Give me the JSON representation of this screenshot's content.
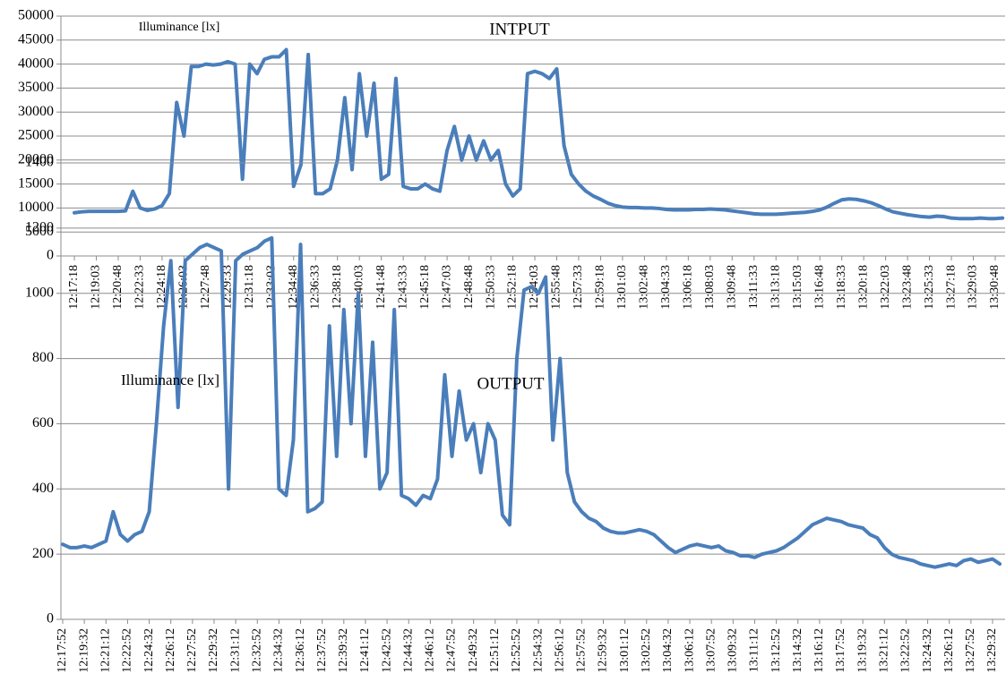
{
  "chart_data": [
    {
      "type": "line",
      "title": "INTPUT",
      "annotation": "Illuminance [lx]",
      "color": "#4a7ebb",
      "grid": true,
      "ylim": [
        0,
        50000
      ],
      "yticks": [
        0,
        5000,
        10000,
        15000,
        20000,
        25000,
        30000,
        35000,
        40000,
        45000,
        50000
      ],
      "categories": [
        "12:17:18",
        null,
        null,
        "12:19:03",
        null,
        null,
        "12:20:48",
        null,
        null,
        "12:22:33",
        null,
        null,
        "12:24:18",
        null,
        null,
        "12:26:03",
        null,
        null,
        "12:27:48",
        null,
        null,
        "12:29:33",
        null,
        null,
        "12:31:18",
        null,
        null,
        "12:33:03",
        null,
        null,
        "12:34:48",
        null,
        null,
        "12:36:33",
        null,
        null,
        "12:38:18",
        null,
        null,
        "12:40:03",
        null,
        null,
        "12:41:48",
        null,
        null,
        "12:43:33",
        null,
        null,
        "12:45:18",
        null,
        null,
        "12:47:03",
        null,
        null,
        "12:48:48",
        null,
        null,
        "12:50:33",
        null,
        null,
        "12:52:18",
        null,
        null,
        "12:54:03",
        null,
        null,
        "12:55:48",
        null,
        null,
        "12:57:33",
        null,
        null,
        "12:59:18",
        null,
        null,
        "13:01:03",
        null,
        null,
        "13:02:48",
        null,
        null,
        "13:04:33",
        null,
        null,
        "13:06:18",
        null,
        null,
        "13:08:03",
        null,
        null,
        "13:09:48",
        null,
        null,
        "13:11:33",
        null,
        null,
        "13:13:18",
        null,
        null,
        "13:15:03",
        null,
        null,
        "13:16:48",
        null,
        null,
        "13:18:33",
        null,
        null,
        "13:20:18",
        null,
        null,
        "13:22:03",
        null,
        null,
        "13:23:48",
        null,
        null,
        "13:25:33",
        null,
        null,
        "13:27:18",
        null,
        null,
        "13:29:03",
        null,
        null,
        "13:30:48",
        null
      ],
      "values": [
        9000,
        9200,
        9300,
        9300,
        9300,
        9300,
        9300,
        9400,
        13500,
        10000,
        9500,
        9800,
        10500,
        13000,
        32000,
        25000,
        39500,
        39500,
        40000,
        39800,
        40000,
        40500,
        40000,
        16000,
        40000,
        38000,
        41000,
        41500,
        41500,
        43000,
        14500,
        19000,
        42000,
        13000,
        13000,
        14000,
        20000,
        33000,
        18000,
        38000,
        25000,
        36000,
        16000,
        17000,
        37000,
        14500,
        14000,
        14000,
        15000,
        14000,
        13500,
        22000,
        27000,
        20000,
        25000,
        20000,
        24000,
        20000,
        22000,
        15000,
        12500,
        14000,
        38000,
        38500,
        38000,
        37000,
        39000,
        23000,
        17000,
        15000,
        13500,
        12500,
        11800,
        11000,
        10500,
        10200,
        10100,
        10100,
        10000,
        10000,
        9900,
        9700,
        9600,
        9600,
        9600,
        9700,
        9700,
        9800,
        9700,
        9600,
        9400,
        9200,
        9000,
        8800,
        8700,
        8700,
        8700,
        8800,
        8900,
        9000,
        9100,
        9300,
        9600,
        10200,
        11000,
        11700,
        11900,
        11800,
        11500,
        11100,
        10500,
        9800,
        9200,
        8900,
        8600,
        8400,
        8200,
        8100,
        8300,
        8200,
        7900,
        7800,
        7800,
        7800,
        7900,
        7800,
        7800,
        7900
      ]
    },
    {
      "type": "line",
      "title": "OUTPUT",
      "annotation": "Illuminance [lx]",
      "color": "#4a7ebb",
      "grid": true,
      "ylim": [
        0,
        1400
      ],
      "yticks": [
        0,
        200,
        400,
        600,
        800,
        1000,
        1200,
        1400
      ],
      "categories": [
        "12:17:52",
        null,
        null,
        "12:19:32",
        null,
        null,
        "12:21:12",
        null,
        null,
        "12:22:52",
        null,
        null,
        "12:24:32",
        null,
        null,
        "12:26:12",
        null,
        null,
        "12:27:52",
        null,
        null,
        "12:29:32",
        null,
        null,
        "12:31:12",
        null,
        null,
        "12:32:52",
        null,
        null,
        "12:34:32",
        null,
        null,
        "12:36:12",
        null,
        null,
        "12:37:52",
        null,
        null,
        "12:39:32",
        null,
        null,
        "12:41:12",
        null,
        null,
        "12:42:52",
        null,
        null,
        "12:44:32",
        null,
        null,
        "12:46:12",
        null,
        null,
        "12:47:52",
        null,
        null,
        "12:49:32",
        null,
        null,
        "12:51:12",
        null,
        null,
        "12:52:52",
        null,
        null,
        "12:54:32",
        null,
        null,
        "12:56:12",
        null,
        null,
        "12:57:52",
        null,
        null,
        "12:59:32",
        null,
        null,
        "13:01:12",
        null,
        null,
        "13:02:52",
        null,
        null,
        "13:04:32",
        null,
        null,
        "13:06:12",
        null,
        null,
        "13:07:52",
        null,
        null,
        "13:09:32",
        null,
        null,
        "13:11:12",
        null,
        null,
        "13:12:52",
        null,
        null,
        "13:14:32",
        null,
        null,
        "13:16:12",
        null,
        null,
        "13:17:52",
        null,
        null,
        "13:19:32",
        null,
        null,
        "13:21:12",
        null,
        null,
        "13:22:52",
        null,
        null,
        "13:24:32",
        null,
        null,
        "13:26:12",
        null,
        null,
        "13:27:52",
        null,
        null,
        "13:29:32",
        null
      ],
      "values": [
        230,
        220,
        220,
        225,
        220,
        230,
        240,
        330,
        260,
        240,
        260,
        270,
        330,
        600,
        900,
        1100,
        650,
        1100,
        1120,
        1140,
        1150,
        1140,
        1130,
        400,
        1100,
        1120,
        1130,
        1140,
        1160,
        1170,
        400,
        380,
        550,
        1150,
        330,
        340,
        360,
        900,
        500,
        950,
        600,
        1000,
        500,
        850,
        400,
        450,
        950,
        380,
        370,
        350,
        380,
        370,
        430,
        750,
        500,
        700,
        550,
        600,
        450,
        600,
        550,
        320,
        290,
        800,
        1010,
        1020,
        1000,
        1050,
        550,
        800,
        450,
        360,
        330,
        310,
        300,
        280,
        270,
        265,
        265,
        270,
        275,
        270,
        260,
        240,
        220,
        205,
        215,
        225,
        230,
        225,
        220,
        225,
        210,
        205,
        195,
        195,
        190,
        200,
        205,
        210,
        220,
        235,
        250,
        270,
        290,
        300,
        310,
        305,
        300,
        290,
        285,
        280,
        260,
        250,
        220,
        200,
        190,
        185,
        180,
        170,
        165,
        160,
        165,
        170,
        165,
        180,
        185,
        175,
        180,
        185,
        170
      ]
    }
  ]
}
